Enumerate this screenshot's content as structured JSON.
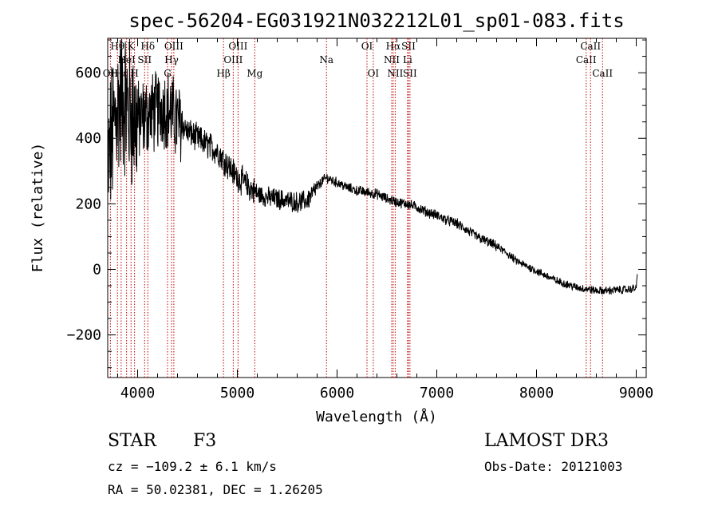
{
  "chart_data": {
    "type": "line",
    "title": "spec-56204-EG031921N032212L01_sp01-083.fits",
    "xlabel": "Wavelength (Å)",
    "ylabel": "Flux (relative)",
    "xlim": [
      3700,
      9100
    ],
    "ylim": [
      -330,
      705
    ],
    "x_ticks": [
      4000,
      5000,
      6000,
      7000,
      8000,
      9000
    ],
    "y_ticks": [
      -200,
      0,
      200,
      400,
      600
    ],
    "x_tick_labels": [
      "4000",
      "5000",
      "6000",
      "7000",
      "8000",
      "9000"
    ],
    "y_tick_labels": [
      "−200",
      "0",
      "200",
      "400",
      "600"
    ],
    "series": [
      {
        "name": "flux",
        "anchors_x": [
          3700,
          3730,
          3760,
          3800,
          3850,
          3900,
          3950,
          4000,
          4050,
          4100,
          4150,
          4200,
          4250,
          4300,
          4350,
          4400,
          4450,
          4500,
          4550,
          4600,
          4650,
          4700,
          4750,
          4800,
          4850,
          4900,
          4950,
          5000,
          5050,
          5100,
          5200,
          5300,
          5400,
          5500,
          5600,
          5700,
          5750,
          5800,
          5850,
          5900,
          5950,
          6000,
          6100,
          6200,
          6300,
          6400,
          6500,
          6600,
          6700,
          6800,
          6900,
          7000,
          7100,
          7200,
          7300,
          7400,
          7500,
          7600,
          7700,
          7800,
          7900,
          8000,
          8100,
          8200,
          8300,
          8400,
          8500,
          8600,
          8700,
          8800,
          8900,
          8950,
          9000,
          9010
        ],
        "anchors_y": [
          300,
          380,
          430,
          500,
          530,
          490,
          470,
          450,
          460,
          470,
          480,
          480,
          500,
          490,
          470,
          450,
          440,
          420,
          410,
          400,
          390,
          380,
          370,
          360,
          340,
          320,
          300,
          280,
          270,
          255,
          230,
          220,
          215,
          210,
          205,
          210,
          230,
          250,
          270,
          280,
          270,
          265,
          250,
          240,
          235,
          230,
          215,
          205,
          200,
          190,
          175,
          165,
          150,
          140,
          120,
          100,
          85,
          70,
          50,
          25,
          10,
          -5,
          -20,
          -35,
          -45,
          -55,
          -60,
          -65,
          -65,
          -63,
          -62,
          -60,
          -58,
          -20
        ],
        "noise": [
          {
            "from": 3700,
            "to": 4000,
            "amplitude": 210
          },
          {
            "from": 4000,
            "to": 4450,
            "amplitude": 110
          },
          {
            "from": 4450,
            "to": 5200,
            "amplitude": 38
          },
          {
            "from": 5200,
            "to": 5800,
            "amplitude": 28
          },
          {
            "from": 5800,
            "to": 7600,
            "amplitude": 14
          },
          {
            "from": 7600,
            "to": 9010,
            "amplitude": 11
          }
        ]
      }
    ],
    "line_markers": [
      {
        "label": "OII",
        "wavelength": 3727,
        "row": 3
      },
      {
        "label": "Hθ",
        "wavelength": 3798,
        "row": 1
      },
      {
        "label": "Hε",
        "wavelength": 3835,
        "row": 3
      },
      {
        "label": "HeI",
        "wavelength": 3889,
        "row": 2
      },
      {
        "label": "K",
        "wavelength": 3934,
        "row": 1
      },
      {
        "label": "H",
        "wavelength": 3969,
        "row": 3
      },
      {
        "label": "SII",
        "wavelength": 4070,
        "row": 2
      },
      {
        "label": "Hδ",
        "wavelength": 4102,
        "row": 1
      },
      {
        "label": "G",
        "wavelength": 4300,
        "row": 3
      },
      {
        "label": "Hγ",
        "wavelength": 4340,
        "row": 2
      },
      {
        "label": "OIII",
        "wavelength": 4363,
        "row": 1
      },
      {
        "label": "Hβ",
        "wavelength": 4861,
        "row": 3
      },
      {
        "label": "OIII",
        "wavelength": 4959,
        "row": 2
      },
      {
        "label": "OIII",
        "wavelength": 5007,
        "row": 1
      },
      {
        "label": "Mg",
        "wavelength": 5175,
        "row": 3
      },
      {
        "label": "Na",
        "wavelength": 5894,
        "row": 2
      },
      {
        "label": "OI",
        "wavelength": 6300,
        "row": 1
      },
      {
        "label": "OI",
        "wavelength": 6363,
        "row": 3
      },
      {
        "label": "NII",
        "wavelength": 6548,
        "row": 2
      },
      {
        "label": "Hα",
        "wavelength": 6563,
        "row": 1
      },
      {
        "label": "NII",
        "wavelength": 6583,
        "row": 3
      },
      {
        "label": "Li",
        "wavelength": 6707,
        "row": 2
      },
      {
        "label": "SII",
        "wavelength": 6716,
        "row": 1
      },
      {
        "label": "SII",
        "wavelength": 6731,
        "row": 3
      },
      {
        "label": "CaII",
        "wavelength": 8498,
        "row": 2
      },
      {
        "label": "CaII",
        "wavelength": 8542,
        "row": 1
      },
      {
        "label": "CaII",
        "wavelength": 8662,
        "row": 3
      }
    ]
  },
  "info": {
    "class": "STAR",
    "subclass": "F3",
    "survey": "LAMOST DR3",
    "redshift": "cz = −109.2 ± 6.1 km/s",
    "obs_date": "Obs-Date: 20121003",
    "coords": "RA =  50.02381, DEC =   1.26205"
  }
}
